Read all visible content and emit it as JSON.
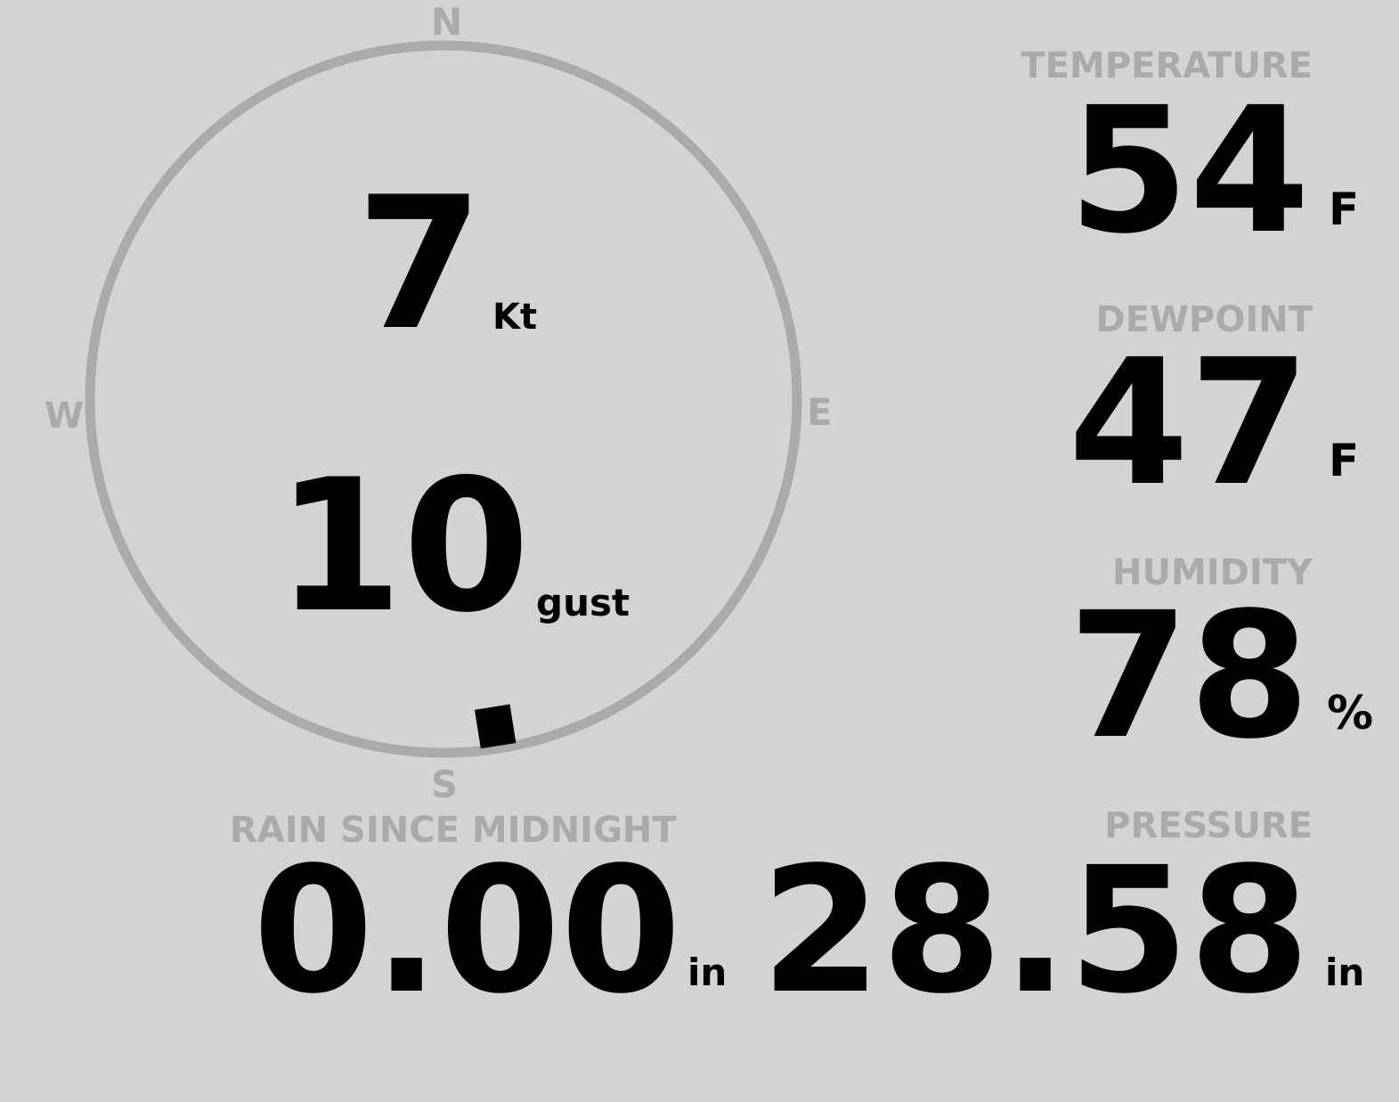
{
  "compass": {
    "n": "N",
    "s": "S",
    "e": "E",
    "w": "W",
    "direction_deg": 171,
    "ring_color": "#aaaaaa"
  },
  "wind": {
    "speed": "7",
    "speed_unit": "Kt",
    "gust": "10",
    "gust_label": "gust"
  },
  "temperature": {
    "label": "TEMPERATURE",
    "value": "54",
    "unit": "F"
  },
  "dewpoint": {
    "label": "DEWPOINT",
    "value": "47",
    "unit": "F"
  },
  "humidity": {
    "label": "HUMIDITY",
    "value": "78",
    "unit": "%"
  },
  "pressure": {
    "label": "PRESSURE",
    "value": "28.58",
    "unit": "in"
  },
  "rain": {
    "label": "RAIN SINCE MIDNIGHT",
    "value": "0.00",
    "unit": "in"
  }
}
